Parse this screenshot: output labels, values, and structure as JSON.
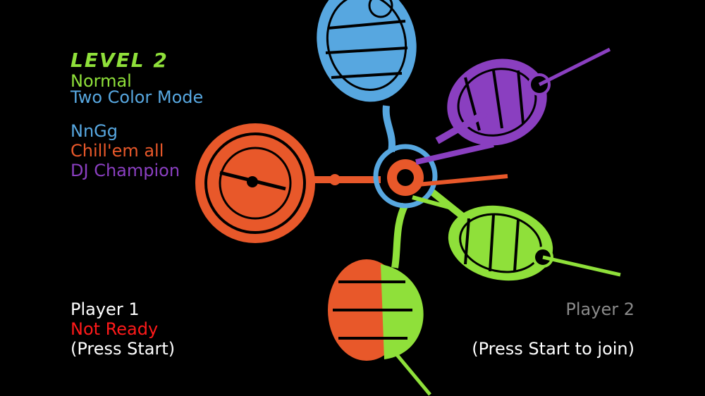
{
  "level": {
    "title": "LEVEL  2",
    "difficulty": "Normal",
    "mode": "Two Color Mode"
  },
  "scores": [
    {
      "label": "NnGg",
      "color": "#57a7e0"
    },
    {
      "label": "Chill'em all",
      "color": "#e8582a"
    },
    {
      "label": "DJ Champion",
      "color": "#8a3fc0"
    }
  ],
  "player1": {
    "name": "Player 1",
    "status": "Not Ready",
    "prompt": "(Press Start)"
  },
  "player2": {
    "name": "Player 2",
    "prompt": "(Press Start to join)"
  },
  "colors": {
    "green": "#8fe03a",
    "blue": "#57a7e0",
    "orange": "#e8582a",
    "purple": "#8a3fc0",
    "not_ready": "#ff1a1a",
    "inactive": "#8a8a8a"
  },
  "artwork": {
    "description_icon": "spaceship-hub-icon"
  }
}
